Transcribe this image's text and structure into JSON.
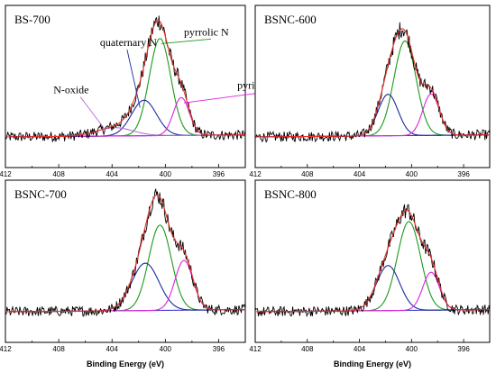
{
  "chart_data": {
    "type": "line",
    "xlabel": "Binding Energy (eV)",
    "xlim": [
      412,
      394
    ],
    "xticks": [
      412,
      408,
      404,
      400,
      396
    ],
    "colors": {
      "raw": "#000000",
      "envelope": "#e8312a",
      "pyrrolic": "#1a9a1a",
      "quaternary": "#1a2a9e",
      "pyridinic": "#e020e0",
      "n_oxide": "#b46fd6",
      "background": "#3a3ad0"
    },
    "panels": [
      {
        "name": "BS-700",
        "components": [
          {
            "name": "pyrrolic N",
            "center": 400.4,
            "height": 0.82,
            "fwhm": 1.9,
            "color_key": "pyrrolic"
          },
          {
            "name": "quaternary N",
            "center": 401.6,
            "height": 0.3,
            "fwhm": 2.2,
            "color_key": "quaternary"
          },
          {
            "name": "pyridinic N",
            "center": 398.8,
            "height": 0.32,
            "fwhm": 1.4,
            "color_key": "pyridinic"
          },
          {
            "name": "N-oxide",
            "center": 403.8,
            "height": 0.07,
            "fwhm": 3.2,
            "color_key": "n_oxide"
          }
        ],
        "annotations": [
          {
            "text": "quaternary N",
            "x": 404.9,
            "y": 0.78,
            "to_x": 401.9,
            "to_y": 0.26
          },
          {
            "text": "pyrrolic N",
            "x": 398.6,
            "y": 0.87,
            "to_x": 400.3,
            "to_y": 0.8
          },
          {
            "text": "N-oxide",
            "x": 408.4,
            "y": 0.38,
            "to_x": 404.5,
            "to_y": 0.07
          },
          {
            "text": "pyridinic N",
            "x": 394.6,
            "y": 0.42,
            "to_x": 398.6,
            "to_y": 0.3
          }
        ]
      },
      {
        "name": "BSNC-600",
        "components": [
          {
            "name": "pyrrolic N",
            "center": 400.5,
            "height": 0.8,
            "fwhm": 2.0,
            "color_key": "pyrrolic"
          },
          {
            "name": "quaternary N",
            "center": 401.8,
            "height": 0.35,
            "fwhm": 1.8,
            "color_key": "quaternary"
          },
          {
            "name": "pyridinic N",
            "center": 398.5,
            "height": 0.35,
            "fwhm": 1.5,
            "color_key": "pyridinic"
          }
        ],
        "annotations": []
      },
      {
        "name": "BSNC-700",
        "components": [
          {
            "name": "pyrrolic N",
            "center": 400.4,
            "height": 0.72,
            "fwhm": 2.0,
            "color_key": "pyrrolic"
          },
          {
            "name": "quaternary N",
            "center": 401.5,
            "height": 0.4,
            "fwhm": 2.4,
            "color_key": "quaternary"
          },
          {
            "name": "pyridinic N",
            "center": 398.6,
            "height": 0.42,
            "fwhm": 1.6,
            "color_key": "pyridinic"
          }
        ],
        "annotations": []
      },
      {
        "name": "BSNC-800",
        "components": [
          {
            "name": "pyrrolic N",
            "center": 400.2,
            "height": 0.75,
            "fwhm": 2.1,
            "color_key": "pyrrolic"
          },
          {
            "name": "quaternary N",
            "center": 401.8,
            "height": 0.38,
            "fwhm": 2.1,
            "color_key": "quaternary"
          },
          {
            "name": "pyridinic N",
            "center": 398.5,
            "height": 0.32,
            "fwhm": 1.5,
            "color_key": "pyridinic"
          }
        ],
        "annotations": []
      }
    ]
  }
}
